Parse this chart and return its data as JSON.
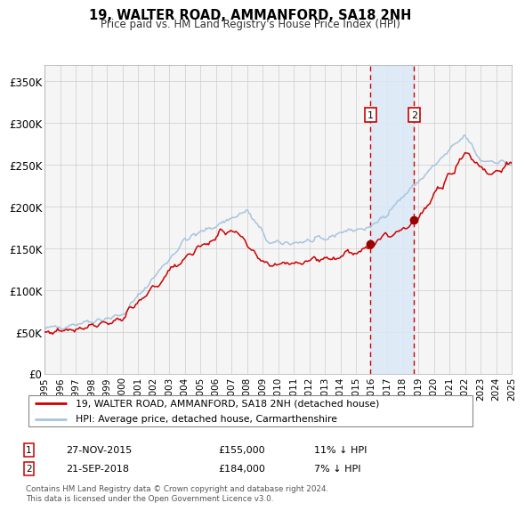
{
  "title": "19, WALTER ROAD, AMMANFORD, SA18 2NH",
  "subtitle": "Price paid vs. HM Land Registry's House Price Index (HPI)",
  "legend_line1": "19, WALTER ROAD, AMMANFORD, SA18 2NH (detached house)",
  "legend_line2": "HPI: Average price, detached house, Carmarthenshire",
  "transaction1_date": "27-NOV-2015",
  "transaction1_price": "£155,000",
  "transaction1_hpi": "11% ↓ HPI",
  "transaction2_date": "21-SEP-2018",
  "transaction2_price": "£184,000",
  "transaction2_hpi": "7% ↓ HPI",
  "footer": "Contains HM Land Registry data © Crown copyright and database right 2024.\nThis data is licensed under the Open Government Licence v3.0.",
  "hpi_color": "#a8c4e0",
  "price_color": "#cc0000",
  "marker_color": "#990000",
  "dashed_line_color": "#cc0000",
  "shade_color": "#daeaf7",
  "grid_color": "#cccccc",
  "bg_color": "#f5f5f5",
  "ylim": [
    0,
    370000
  ],
  "yticks": [
    0,
    50000,
    100000,
    150000,
    200000,
    250000,
    300000,
    350000
  ],
  "ytick_labels": [
    "£0",
    "£50K",
    "£100K",
    "£150K",
    "£200K",
    "£250K",
    "£300K",
    "£350K"
  ],
  "start_year": 1995,
  "end_year": 2025,
  "sale1_year": 2015.92,
  "sale1_price": 155000,
  "sale2_year": 2018.72,
  "sale2_price": 184000
}
